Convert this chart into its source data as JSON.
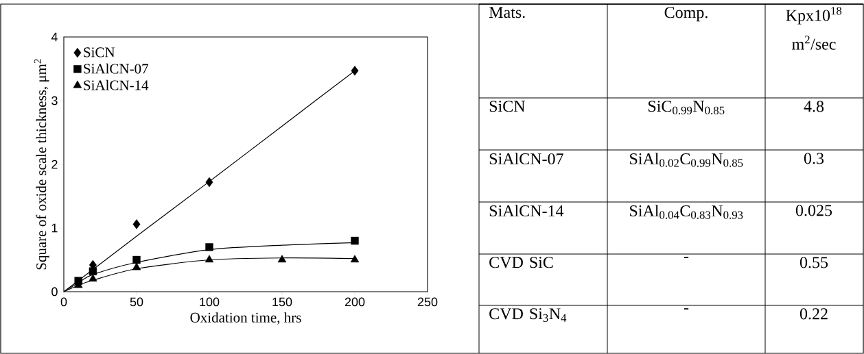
{
  "chart_data": [
    {
      "type": "scatter",
      "xlabel": "Oxidation time, hrs",
      "ylabel": "Square of oxide scale thickness, μm$^{2}$",
      "xlim": [
        0,
        250
      ],
      "ylim": [
        0,
        4
      ],
      "xticks": [
        0,
        50,
        100,
        150,
        200,
        250
      ],
      "yticks": [
        0,
        1,
        2,
        3,
        4
      ],
      "legend": "top left",
      "series": [
        {
          "name": "SiCN",
          "color": "#000000",
          "marker": "diamond",
          "x": [
            20,
            50,
            100,
            200
          ],
          "values": [
            0.42,
            1.06,
            1.72,
            3.47
          ]
        },
        {
          "name": "SiAlCN-07",
          "color": "#000000",
          "marker": "square",
          "x": [
            10,
            20,
            50,
            100,
            200
          ],
          "values": [
            0.17,
            0.32,
            0.5,
            0.7,
            0.8
          ]
        },
        {
          "name": "SiAlCN-14",
          "color": "#000000",
          "marker": "triangle",
          "x": [
            10,
            20,
            50,
            100,
            150,
            200
          ],
          "values": [
            0.1,
            0.2,
            0.38,
            0.5,
            0.5,
            0.5
          ]
        },
        {
          "type": "line",
          "color": "#000000",
          "x": [
            0,
            50,
            100,
            150,
            200
          ],
          "values": [
            0,
            0.87,
            1.73,
            2.6,
            3.47
          ]
        },
        {
          "type": "line",
          "color": "#000000",
          "x": [
            0,
            10,
            20,
            50,
            100,
            150,
            200
          ],
          "values": [
            0,
            0.14,
            0.27,
            0.46,
            0.66,
            0.73,
            0.77
          ]
        },
        {
          "type": "line",
          "color": "#000000",
          "x": [
            0,
            10,
            20,
            50,
            100,
            150,
            200
          ],
          "values": [
            0,
            0.1,
            0.18,
            0.36,
            0.5,
            0.53,
            0.52
          ]
        }
      ]
    },
    {
      "type": "other",
      "annotations": [
        "Mats.",
        "Comp.",
        "Kpx10$^{18}$ m$^{2}$/sec",
        "SiCN",
        "SiC$_{0.99}$N$_{0.85}$",
        "4.8",
        "SiAlCN-07",
        "SiAl$_{0.02}$C$_{0.99}$N$_{0.85}$",
        "0.3",
        "SiAlCN-14",
        "SiAl$_{0.04}$C$_{0.83}$N$_{0.93}$",
        "0.025",
        "CVD SiC",
        "-",
        "0.55",
        "CVD Si$_{3}$N$_{4}$",
        "-",
        "0.22"
      ]
    }
  ]
}
